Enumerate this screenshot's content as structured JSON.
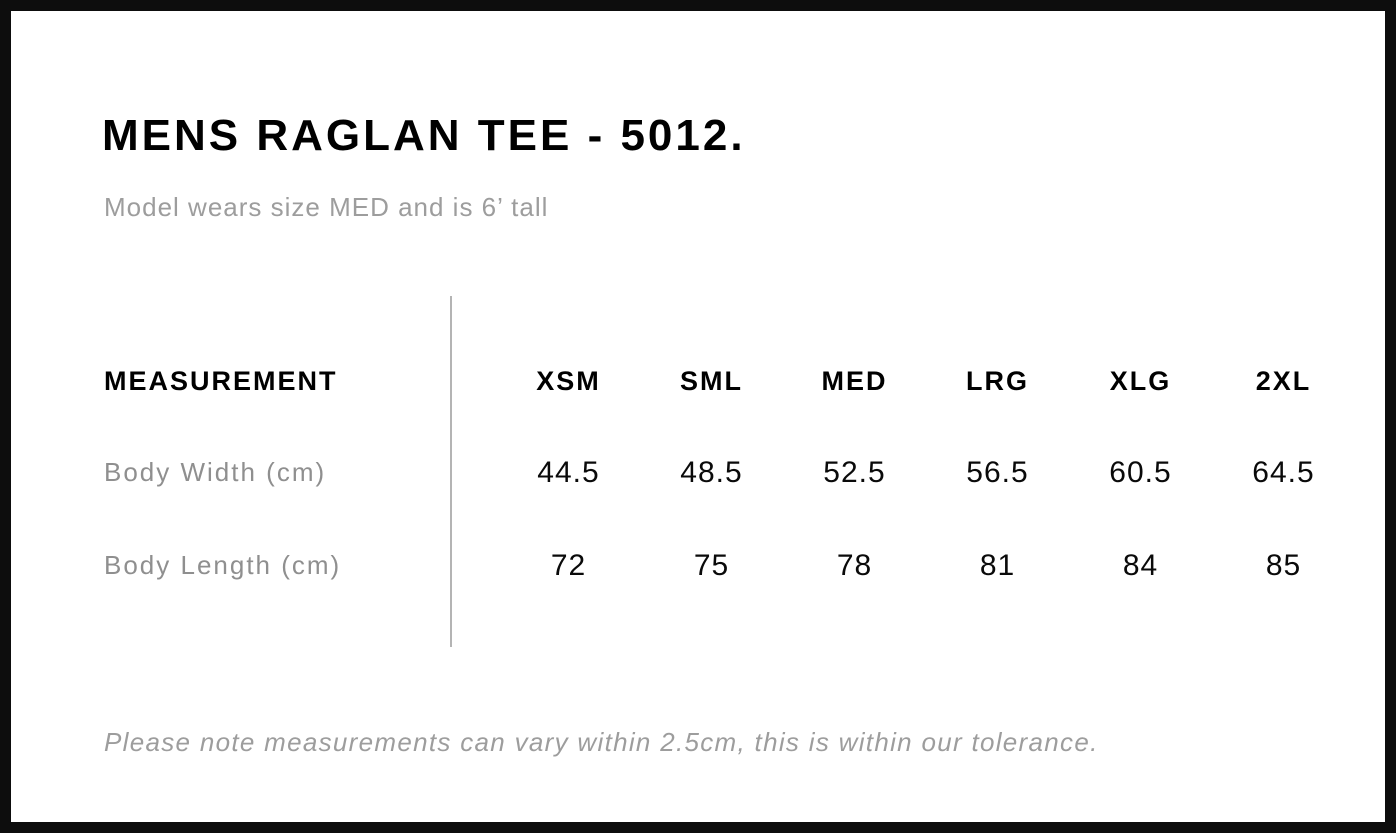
{
  "page": {
    "title": "MENS RAGLAN TEE - 5012.",
    "subtitle": "Model wears size MED and is 6’ tall",
    "tolerance_note": "Please note measurements can vary within 2.5cm, this is within our tolerance."
  },
  "size_chart": {
    "measurement_header": "MEASUREMENT",
    "size_headers": [
      "XSM",
      "SML",
      "MED",
      "LRG",
      "XLG",
      "2XL"
    ],
    "rows": [
      {
        "label": "Body Width (cm)",
        "values": [
          "44.5",
          "48.5",
          "52.5",
          "56.5",
          "60.5",
          "64.5"
        ]
      },
      {
        "label": "Body Length (cm)",
        "values": [
          "72",
          "75",
          "78",
          "81",
          "84",
          "85"
        ]
      }
    ]
  },
  "chart_data": {
    "type": "table",
    "title": "MENS RAGLAN TEE - 5012.",
    "columns": [
      "MEASUREMENT",
      "XSM",
      "SML",
      "MED",
      "LRG",
      "XLG",
      "2XL"
    ],
    "rows": [
      [
        "Body Width (cm)",
        44.5,
        48.5,
        52.5,
        56.5,
        60.5,
        64.5
      ],
      [
        "Body Length (cm)",
        72,
        75,
        78,
        81,
        84,
        85
      ]
    ]
  },
  "colors": {
    "frame_border": "#0d0d0d",
    "title_text": "#000000",
    "muted_text": "#9d9d9d",
    "row_label_text": "#8f8f8f",
    "value_text": "#0a0a0a",
    "divider": "#b4b4b4",
    "background": "#ffffff"
  }
}
